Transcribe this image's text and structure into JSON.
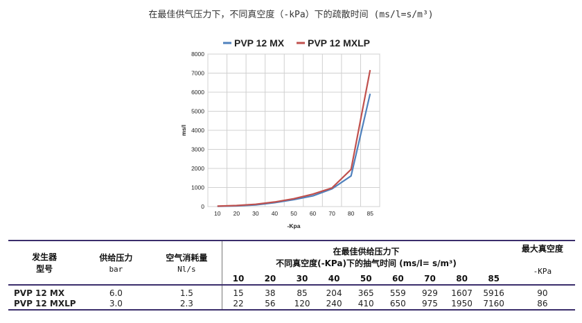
{
  "title": "在最佳供气压力下，不同真空度（-kPa）下的疏散时间 (ms/l=s/m³)",
  "chart_data": {
    "type": "line",
    "x": [
      10,
      20,
      30,
      40,
      50,
      60,
      70,
      80,
      85
    ],
    "series": [
      {
        "name": "PVP 12 MX",
        "color": "#4f81bd",
        "values": [
          15,
          38,
          85,
          204,
          365,
          559,
          929,
          1607,
          5916
        ]
      },
      {
        "name": "PVP 12 MXLP",
        "color": "#c0504d",
        "values": [
          22,
          56,
          120,
          240,
          410,
          650,
          975,
          1950,
          7160
        ]
      }
    ],
    "xlabel": "-Kpa",
    "ylabel": "ms/l",
    "ylim": [
      0,
      8000
    ],
    "yticks": [
      0,
      1000,
      2000,
      3000,
      4000,
      5000,
      6000,
      7000,
      8000
    ],
    "grid": true,
    "legend": "top"
  },
  "table": {
    "col_model": "发生器",
    "col_model2": "型号",
    "col_pressure": "供给压力",
    "col_pressure_unit": "bar",
    "col_air": "空气消耗量",
    "col_air_unit": "Nl/s",
    "col_vac_line1": "在最佳供给压力下",
    "col_vac_line2": "不同真空度(-KPa)下的抽气时间 (ms/l= s/m³)",
    "col_max": "最大真空度",
    "col_max_unit": "-KPa",
    "pressures": [
      "10",
      "20",
      "30",
      "40",
      "50",
      "60",
      "70",
      "80",
      "85"
    ],
    "rows": [
      {
        "model": "PVP 12 MX",
        "pressure": "6.0",
        "air": "1.5",
        "times": [
          "15",
          "38",
          "85",
          "204",
          "365",
          "559",
          "929",
          "1607",
          "5916"
        ],
        "max": "90"
      },
      {
        "model": "PVP 12 MXLP",
        "pressure": "3.0",
        "air": "2.3",
        "times": [
          "22",
          "56",
          "120",
          "240",
          "410",
          "650",
          "975",
          "1950",
          "7160"
        ],
        "max": "86"
      }
    ]
  }
}
